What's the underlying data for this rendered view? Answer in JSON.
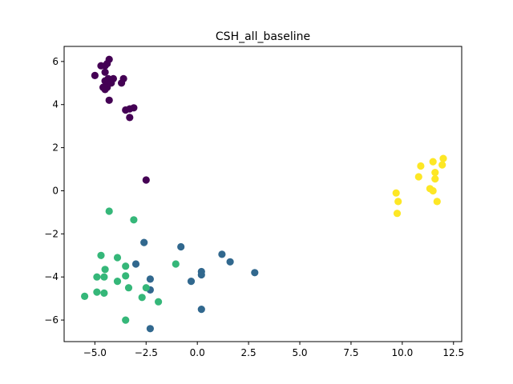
{
  "chart_data": {
    "type": "scatter",
    "title": "CSH_all_baseline",
    "xlabel": "",
    "ylabel": "",
    "xlim": [
      -6.5,
      12.9
    ],
    "ylim": [
      -7.0,
      6.7
    ],
    "xticks": [
      -5.0,
      -2.5,
      0.0,
      2.5,
      5.0,
      7.5,
      10.0,
      12.5
    ],
    "xtick_labels": [
      "−5.0",
      "−2.5",
      "0.0",
      "2.5",
      "5.0",
      "7.5",
      "10.0",
      "12.5"
    ],
    "yticks": [
      -6,
      -4,
      -2,
      0,
      2,
      4,
      6
    ],
    "ytick_labels": [
      "−6",
      "−4",
      "−2",
      "0",
      "2",
      "4",
      "6"
    ],
    "grid": false,
    "series": [
      {
        "color": "#440154",
        "points": [
          [
            -4.3,
            6.1
          ],
          [
            -4.5,
            5.8
          ],
          [
            -4.4,
            5.9
          ],
          [
            -4.7,
            5.8
          ],
          [
            -5.0,
            5.35
          ],
          [
            -4.5,
            5.5
          ],
          [
            -4.5,
            5.1
          ],
          [
            -4.35,
            5.2
          ],
          [
            -4.1,
            5.2
          ],
          [
            -3.6,
            5.2
          ],
          [
            -3.7,
            5.0
          ],
          [
            -4.2,
            5.0
          ],
          [
            -4.4,
            4.9
          ],
          [
            -4.6,
            4.8
          ],
          [
            -4.4,
            4.8
          ],
          [
            -4.5,
            4.7
          ],
          [
            -4.3,
            4.2
          ],
          [
            -3.5,
            3.75
          ],
          [
            -3.3,
            3.8
          ],
          [
            -3.1,
            3.85
          ],
          [
            -3.3,
            3.4
          ],
          [
            -2.5,
            0.5
          ]
        ]
      },
      {
        "color": "#31688e",
        "points": [
          [
            -2.6,
            -2.4
          ],
          [
            -2.3,
            -4.1
          ],
          [
            -2.3,
            -4.6
          ],
          [
            -3.0,
            -3.4
          ],
          [
            -2.3,
            -6.4
          ],
          [
            -0.8,
            -2.6
          ],
          [
            -0.3,
            -4.2
          ],
          [
            0.2,
            -3.75
          ],
          [
            0.2,
            -3.9
          ],
          [
            0.2,
            -5.5
          ],
          [
            1.2,
            -2.95
          ],
          [
            1.6,
            -3.3
          ],
          [
            2.8,
            -3.8
          ]
        ]
      },
      {
        "color": "#35b779",
        "points": [
          [
            -4.3,
            -0.95
          ],
          [
            -3.1,
            -1.35
          ],
          [
            -4.7,
            -3.0
          ],
          [
            -3.9,
            -3.1
          ],
          [
            -4.5,
            -3.65
          ],
          [
            -3.5,
            -3.5
          ],
          [
            -4.9,
            -4.0
          ],
          [
            -4.55,
            -4.0
          ],
          [
            -3.5,
            -3.95
          ],
          [
            -3.9,
            -4.2
          ],
          [
            -3.35,
            -4.5
          ],
          [
            -2.5,
            -4.5
          ],
          [
            -1.05,
            -3.4
          ],
          [
            -5.5,
            -4.9
          ],
          [
            -4.9,
            -4.7
          ],
          [
            -4.55,
            -4.75
          ],
          [
            -2.7,
            -4.95
          ],
          [
            -1.9,
            -5.15
          ],
          [
            -3.5,
            -6.0
          ]
        ]
      },
      {
        "color": "#fde725",
        "points": [
          [
            12.0,
            1.5
          ],
          [
            11.5,
            1.35
          ],
          [
            10.9,
            1.15
          ],
          [
            11.95,
            1.2
          ],
          [
            11.6,
            0.85
          ],
          [
            10.8,
            0.65
          ],
          [
            11.6,
            0.55
          ],
          [
            11.35,
            0.1
          ],
          [
            11.5,
            0.0
          ],
          [
            9.7,
            -0.1
          ],
          [
            9.8,
            -0.5
          ],
          [
            11.7,
            -0.5
          ],
          [
            9.75,
            -1.05
          ]
        ]
      }
    ]
  }
}
